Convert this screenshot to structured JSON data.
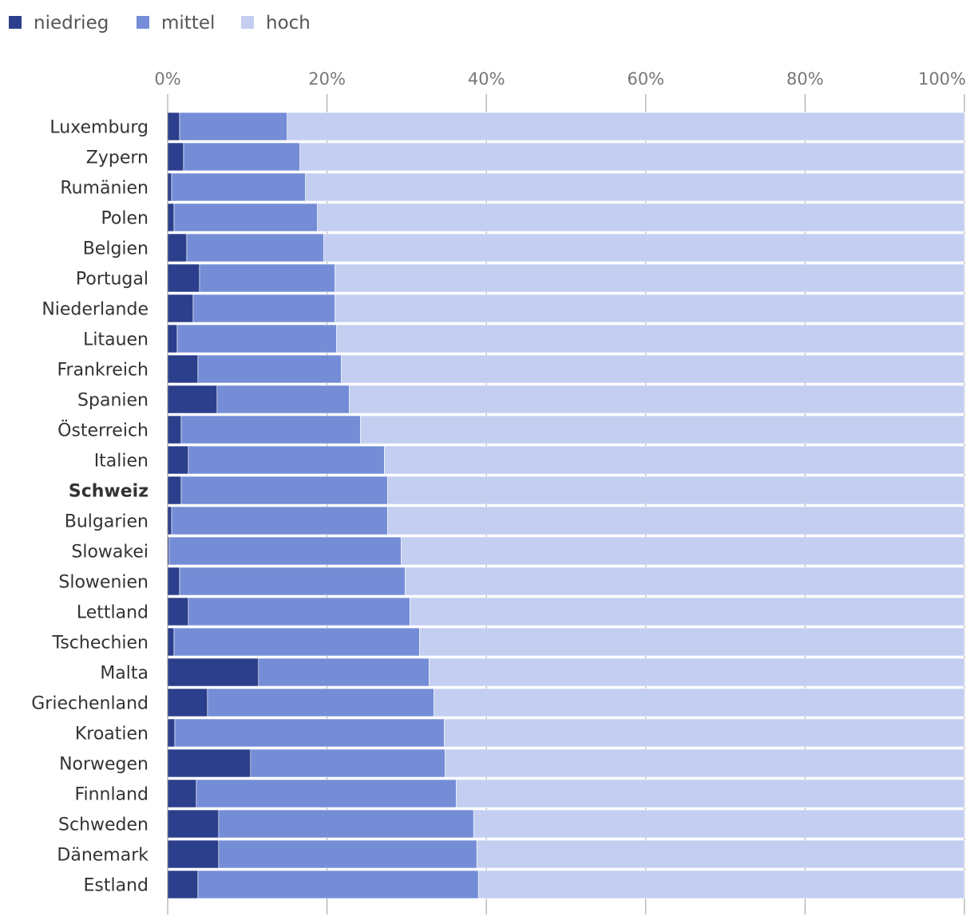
{
  "chart_data": {
    "type": "bar",
    "orientation": "horizontal",
    "stacked": true,
    "percent_stacked": true,
    "xlim": [
      0,
      100
    ],
    "x_ticks": [
      "0%",
      "20%",
      "40%",
      "60%",
      "80%",
      "100%"
    ],
    "grid": true,
    "legend_position": "top-left",
    "highlighted_category": "Schweiz",
    "categories": [
      "Luxemburg",
      "Zypern",
      "Rumänien",
      "Polen",
      "Belgien",
      "Portugal",
      "Niederlande",
      "Litauen",
      "Frankreich",
      "Spanien",
      "Österreich",
      "Italien",
      "Schweiz",
      "Bulgarien",
      "Slowakei",
      "Slowenien",
      "Lettland",
      "Tschechien",
      "Malta",
      "Griechenland",
      "Kroatien",
      "Norwegen",
      "Finnland",
      "Schweden",
      "Dänemark",
      "Estland"
    ],
    "series": [
      {
        "name": "niedrieg",
        "color": "#2b3f8c",
        "values": [
          1.5,
          2.0,
          0.5,
          0.8,
          2.4,
          4.0,
          3.2,
          1.2,
          3.8,
          6.2,
          1.7,
          2.6,
          1.7,
          0.5,
          0.2,
          1.5,
          2.6,
          0.8,
          11.4,
          5.0,
          0.9,
          10.4,
          3.6,
          6.4,
          6.4,
          3.8
        ]
      },
      {
        "name": "mittel",
        "color": "#748dd6",
        "values": [
          13.5,
          14.6,
          16.8,
          18.0,
          17.2,
          17.0,
          17.8,
          20.0,
          18.0,
          16.6,
          22.5,
          24.6,
          25.9,
          27.1,
          29.1,
          28.3,
          27.8,
          30.8,
          21.4,
          28.4,
          33.8,
          24.4,
          32.6,
          32.0,
          32.4,
          35.2
        ]
      },
      {
        "name": "hoch",
        "color": "#c3cef1",
        "values": [
          85.0,
          83.4,
          82.7,
          81.2,
          80.4,
          79.0,
          79.0,
          78.8,
          78.2,
          77.2,
          75.8,
          72.8,
          72.4,
          72.4,
          70.7,
          70.2,
          69.6,
          68.4,
          67.2,
          66.6,
          65.3,
          65.2,
          63.8,
          61.6,
          61.2,
          61.0
        ]
      }
    ]
  }
}
